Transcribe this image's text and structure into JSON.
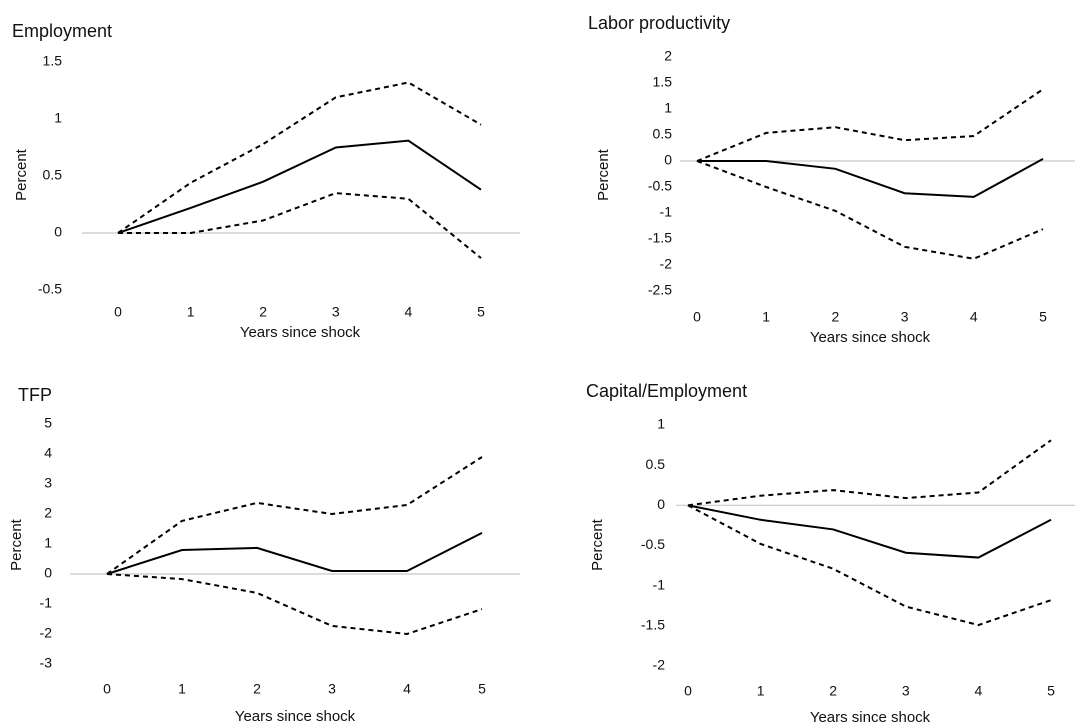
{
  "chart_data": [
    {
      "type": "line",
      "title": "Employment",
      "ylabel": "Percent",
      "xlabel": "Years since shock",
      "categories": [
        "0",
        "1",
        "2",
        "3",
        "4",
        "5"
      ],
      "ylim": [
        -0.5,
        1.5
      ],
      "yticks": [
        -0.5,
        0,
        0.5,
        1,
        1.5
      ],
      "zero_line": true,
      "series": [
        {
          "color": "#000000",
          "style": "solid",
          "values": [
            0,
            0.22,
            0.45,
            0.75,
            0.81,
            0.38
          ]
        },
        {
          "color": "#000000",
          "style": "dashed",
          "values": [
            0,
            0.44,
            0.78,
            1.19,
            1.32,
            0.95
          ]
        },
        {
          "color": "#000000",
          "style": "dashed",
          "values": [
            0,
            0,
            0.11,
            0.35,
            0.3,
            -0.22
          ]
        }
      ]
    },
    {
      "type": "line",
      "title": "Labor productivity",
      "ylabel": "Percent",
      "xlabel": "Years since shock",
      "categories": [
        "0",
        "1",
        "2",
        "3",
        "4",
        "5"
      ],
      "ylim": [
        -2.5,
        2
      ],
      "yticks": [
        -2.5,
        -2,
        -1.5,
        -1,
        -0.5,
        0,
        0.5,
        1,
        1.5,
        2
      ],
      "zero_line": true,
      "series": [
        {
          "color": "#000000",
          "style": "solid",
          "values": [
            0,
            0,
            -0.15,
            -0.62,
            -0.69,
            0.04
          ]
        },
        {
          "color": "#000000",
          "style": "dashed",
          "values": [
            0,
            0.54,
            0.65,
            0.4,
            0.48,
            1.38
          ]
        },
        {
          "color": "#000000",
          "style": "dashed",
          "values": [
            0,
            -0.5,
            -0.96,
            -1.65,
            -1.88,
            -1.31
          ]
        }
      ]
    },
    {
      "type": "line",
      "title": "TFP",
      "ylabel": "Percent",
      "xlabel": "Years since shock",
      "categories": [
        "0",
        "1",
        "2",
        "3",
        "4",
        "5"
      ],
      "ylim": [
        -3,
        5
      ],
      "yticks": [
        -3,
        -2,
        -1,
        0,
        1,
        2,
        3,
        4,
        5
      ],
      "zero_line": true,
      "series": [
        {
          "color": "#000000",
          "style": "solid",
          "values": [
            0,
            0.8,
            0.87,
            0.1,
            0.1,
            1.37
          ]
        },
        {
          "color": "#000000",
          "style": "dashed",
          "values": [
            0,
            1.77,
            2.37,
            2.0,
            2.3,
            3.9
          ]
        },
        {
          "color": "#000000",
          "style": "dashed",
          "values": [
            0,
            -0.17,
            -0.63,
            -1.73,
            -2.0,
            -1.17
          ]
        }
      ]
    },
    {
      "type": "line",
      "title": "Capital/Employment",
      "ylabel": "Percent",
      "xlabel": "Years since shock",
      "categories": [
        "0",
        "1",
        "2",
        "3",
        "4",
        "5"
      ],
      "ylim": [
        -2,
        1
      ],
      "yticks": [
        -2,
        -1.5,
        -1,
        -0.5,
        0,
        0.5,
        1
      ],
      "zero_line": true,
      "series": [
        {
          "color": "#000000",
          "style": "solid",
          "values": [
            0,
            -0.18,
            -0.3,
            -0.59,
            -0.65,
            -0.18
          ]
        },
        {
          "color": "#000000",
          "style": "dashed",
          "values": [
            0,
            0.12,
            0.19,
            0.09,
            0.16,
            0.81
          ]
        },
        {
          "color": "#000000",
          "style": "dashed",
          "values": [
            0,
            -0.48,
            -0.79,
            -1.26,
            -1.49,
            -1.18
          ]
        }
      ]
    }
  ]
}
